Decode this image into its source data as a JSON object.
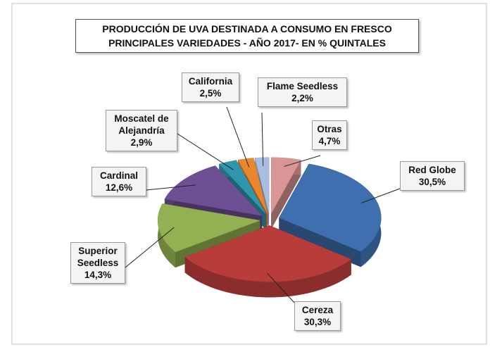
{
  "chart_data": {
    "type": "pie3d",
    "title": "PRODUCCIÓN DE UVA DESTINADA A CONSUMO EN FRESCO",
    "subtitle": "PRINCIPALES VARIEDADES - AÑO 2017- EN % QUINTALES",
    "categories": [
      "Red Globe",
      "Cereza",
      "Superior Seedless",
      "Cardinal",
      "Moscatel de Alejandría",
      "California",
      "Flame Seedless",
      "Otras"
    ],
    "values": [
      30.5,
      30.3,
      14.3,
      12.6,
      2.9,
      2.5,
      2.2,
      4.7
    ],
    "value_labels": [
      "30,5%",
      "30,3%",
      "14,3%",
      "12,6%",
      "2,9%",
      "2,5%",
      "2,2%",
      "4,7%"
    ],
    "colors": [
      "#3f6fae",
      "#b83c3a",
      "#93b152",
      "#6f4f94",
      "#2f97ad",
      "#e8872e",
      "#a9bde0",
      "#d99694"
    ]
  }
}
